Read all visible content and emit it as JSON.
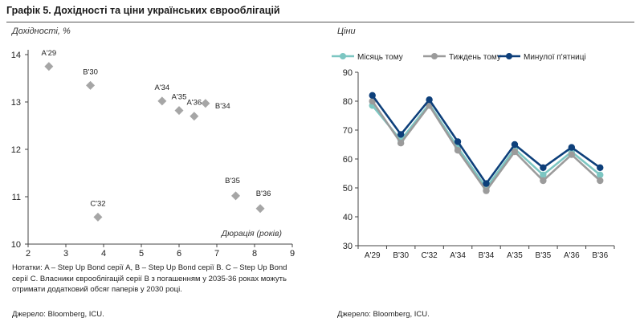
{
  "figure": {
    "title": "Графік 5. Дохідності та ціни українських єврооблігацій",
    "note": "Нотатки: A – Step Up Bond серії A, B – Step Up Bond серії B. C – Step Up Bond серії C. Власники єврооблігацій серії B з погашенням у 2035-36 роках можуть отримати додатковий обсяг паперів у 2030 році.",
    "source_left": "Джерело: Bloomberg, ICU.",
    "source_right": "Джерело: Bloomberg, ICU."
  },
  "chart_data": [
    {
      "type": "scatter",
      "ylabel": "Дохідності, %",
      "xlabel": "Дюрація (років)",
      "xlim": [
        2,
        9
      ],
      "ylim": [
        10,
        14
      ],
      "xticks": [
        2,
        3,
        4,
        5,
        6,
        7,
        8,
        9
      ],
      "yticks": [
        10,
        11,
        12,
        13,
        14
      ],
      "grid": false,
      "marker_color": "#a6a6a6",
      "points": [
        {
          "label": "A'29",
          "x": 2.55,
          "y": 13.75
        },
        {
          "label": "B'30",
          "x": 3.65,
          "y": 13.35
        },
        {
          "label": "A'34",
          "x": 5.55,
          "y": 13.02
        },
        {
          "label": "A'35",
          "x": 6.0,
          "y": 12.82
        },
        {
          "label": "A'36",
          "x": 6.4,
          "y": 12.7
        },
        {
          "label": "B'34",
          "x": 6.7,
          "y": 12.97
        },
        {
          "label": "C'32",
          "x": 3.85,
          "y": 10.57
        },
        {
          "label": "B'35",
          "x": 7.5,
          "y": 11.02
        },
        {
          "label": "B'36",
          "x": 8.15,
          "y": 10.75
        }
      ]
    },
    {
      "type": "line",
      "ylabel": "Ціни",
      "ylim": [
        30,
        90
      ],
      "yticks": [
        30,
        40,
        50,
        60,
        70,
        80,
        90
      ],
      "grid": false,
      "legend": "top",
      "categories": [
        "A'29",
        "B'30",
        "C'32",
        "A'34",
        "B'34",
        "A'35",
        "B'35",
        "A'36",
        "B'36"
      ],
      "series": [
        {
          "name": "Місяць тому",
          "color": "#7cc6c2",
          "values": [
            78.5,
            66.5,
            79.0,
            64.0,
            50.0,
            63.5,
            54.5,
            62.5,
            54.5
          ]
        },
        {
          "name": "Тиждень тому",
          "color": "#9b9b9b",
          "values": [
            80.0,
            65.5,
            78.5,
            63.0,
            49.0,
            62.5,
            52.5,
            61.5,
            52.5
          ]
        },
        {
          "name": "Минулої п'ятниці",
          "color": "#0d3f7a",
          "values": [
            82.0,
            68.5,
            80.5,
            66.0,
            51.5,
            65.0,
            57.0,
            64.0,
            57.0
          ]
        }
      ]
    }
  ]
}
